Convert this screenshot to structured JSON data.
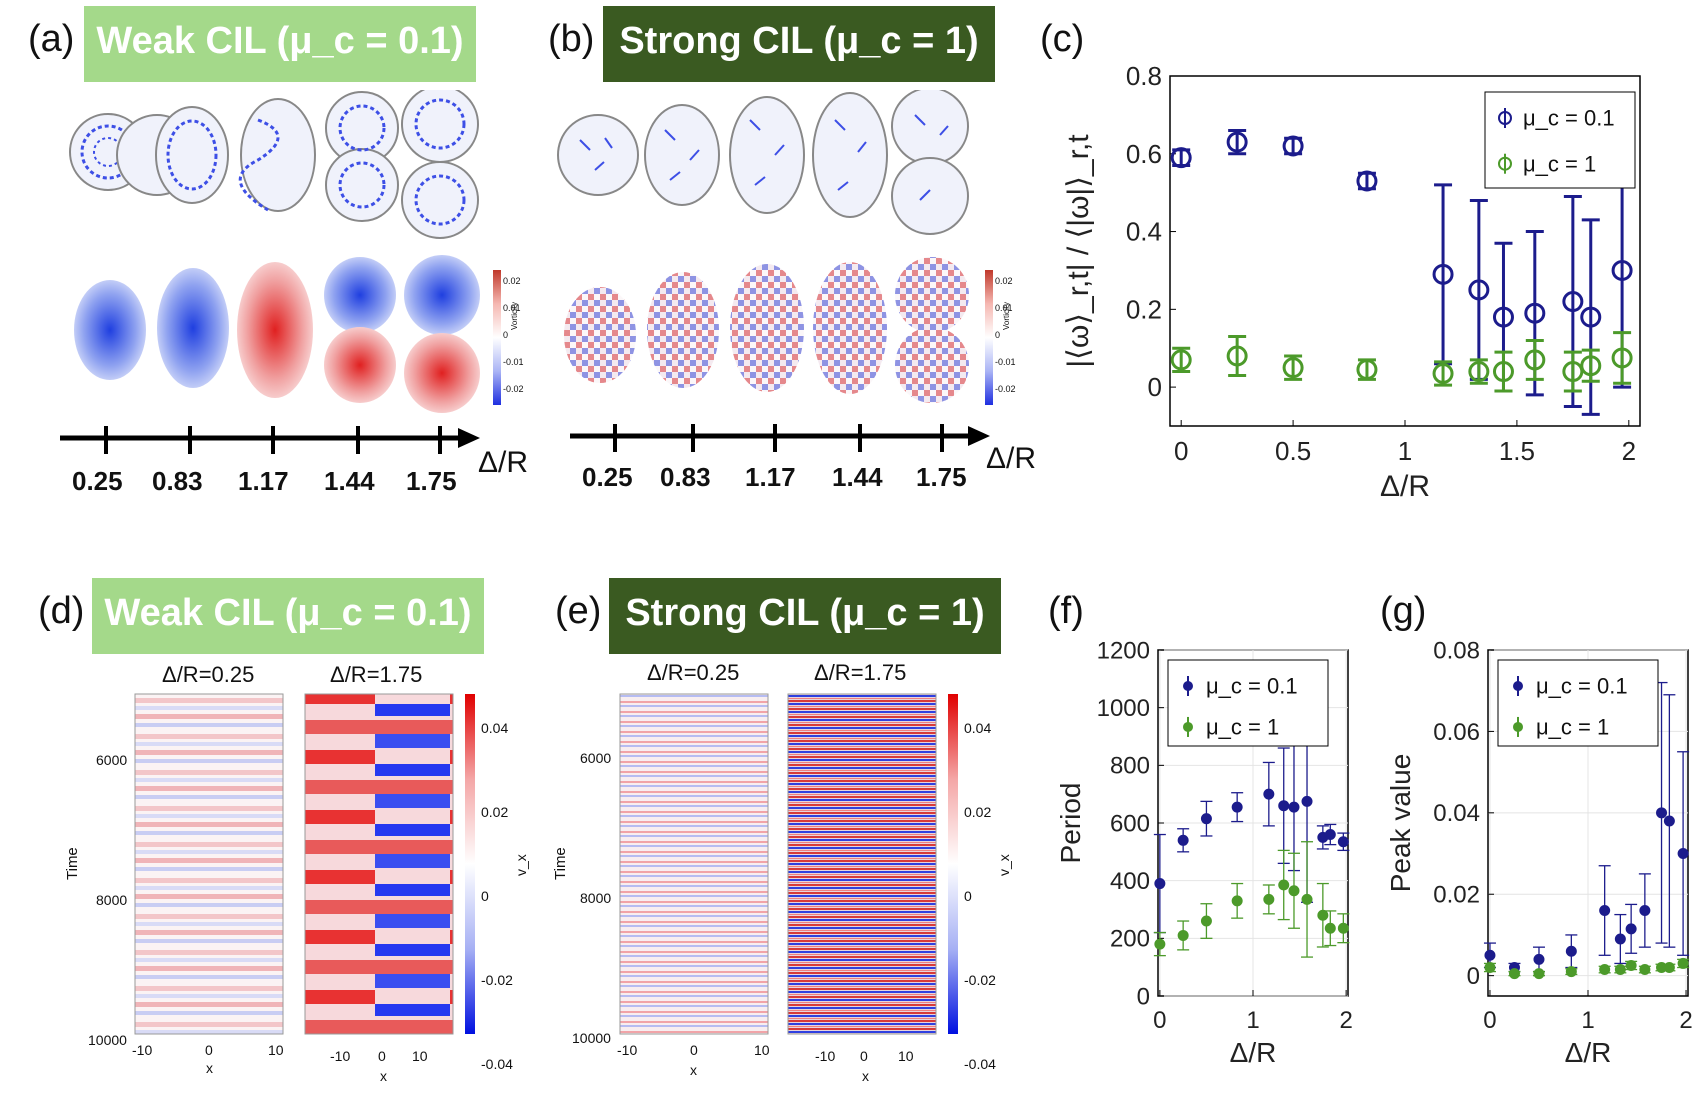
{
  "panel_labels": {
    "a": "(a)",
    "b": "(b)",
    "c": "(c)",
    "d": "(d)",
    "e": "(e)",
    "f": "(f)",
    "g": "(g)"
  },
  "banners": {
    "weak": "Weak CIL (μ_c = 0.1)",
    "strong": "Strong CIL (μ_c = 1)"
  },
  "delta_axis": {
    "ticks": [
      "0.25",
      "0.83",
      "1.17",
      "1.44",
      "1.75"
    ],
    "label": "Δ/R"
  },
  "vorticity_colorbar": {
    "title": "Vorticity",
    "ticks": [
      "0.02",
      "0.01",
      "0",
      "-0.01",
      "-0.02"
    ]
  },
  "kymograph": {
    "titles": [
      "Δ/R=0.25",
      "Δ/R=1.75"
    ],
    "ylabel": "Time",
    "xlabel": "x",
    "yticks": [
      "6000",
      "8000",
      "10000"
    ],
    "xticks_narrow": [
      "-10",
      "0",
      "10"
    ],
    "xticks_wide": [
      "-10",
      "0",
      "10"
    ],
    "colorbar_label": "v_x",
    "colorbar_ticks": [
      "0.04",
      "0.02",
      "0",
      "-0.02",
      "-0.04"
    ]
  },
  "chart_data": [
    {
      "id": "c",
      "type": "scatter",
      "xlabel": "Δ/R",
      "ylabel": "|⟨ω⟩_r,t| / ⟨|ω|⟩_r,t",
      "xlim": [
        -0.05,
        2.05
      ],
      "ylim": [
        -0.1,
        0.8
      ],
      "xticks": [
        0,
        0.5,
        1,
        1.5,
        2
      ],
      "xtick_labels": [
        "0",
        "0.5",
        "1",
        "1.5",
        "2"
      ],
      "yticks": [
        0,
        0.2,
        0.4,
        0.6,
        0.8
      ],
      "ytick_labels": [
        "0",
        "0.2",
        "0.4",
        "0.6",
        "0.8"
      ],
      "legend": "top-right",
      "series": [
        {
          "name": "μ_c = 0.1",
          "color": "#1c1c8c",
          "x": [
            0,
            0.25,
            0.5,
            0.83,
            1.17,
            1.33,
            1.44,
            1.58,
            1.75,
            1.83,
            1.97
          ],
          "y": [
            0.59,
            0.63,
            0.62,
            0.53,
            0.29,
            0.25,
            0.18,
            0.19,
            0.22,
            0.18,
            0.3
          ],
          "err": [
            0.02,
            0.03,
            0.02,
            0.02,
            0.23,
            0.23,
            0.19,
            0.21,
            0.27,
            0.25,
            0.3
          ]
        },
        {
          "name": "μ_c = 1",
          "color": "#4c9a2a",
          "x": [
            0,
            0.25,
            0.5,
            0.83,
            1.17,
            1.33,
            1.44,
            1.58,
            1.75,
            1.83,
            1.97
          ],
          "y": [
            0.07,
            0.08,
            0.05,
            0.045,
            0.035,
            0.04,
            0.04,
            0.07,
            0.04,
            0.055,
            0.075
          ],
          "err": [
            0.03,
            0.05,
            0.03,
            0.025,
            0.03,
            0.03,
            0.05,
            0.05,
            0.05,
            0.04,
            0.065
          ]
        }
      ]
    },
    {
      "id": "f",
      "type": "scatter",
      "xlabel": "Δ/R",
      "ylabel": "Period",
      "xlim": [
        -0.02,
        2.02
      ],
      "ylim": [
        0,
        1200
      ],
      "xticks": [
        0,
        1,
        2
      ],
      "xtick_labels": [
        "0",
        "1",
        "2"
      ],
      "yticks": [
        0,
        200,
        400,
        600,
        800,
        1000,
        1200
      ],
      "ytick_labels": [
        "0",
        "200",
        "400",
        "600",
        "800",
        "1000",
        "1200"
      ],
      "legend": "top-left",
      "series": [
        {
          "name": "μ_c = 0.1",
          "color": "#1c1c8c",
          "x": [
            0,
            0.25,
            0.5,
            0.83,
            1.17,
            1.33,
            1.44,
            1.58,
            1.75,
            1.83,
            1.97
          ],
          "y": [
            390,
            540,
            615,
            655,
            700,
            660,
            655,
            675,
            550,
            560,
            535
          ],
          "err": [
            170,
            40,
            60,
            50,
            110,
            200,
            220,
            350,
            40,
            35,
            30
          ]
        },
        {
          "name": "μ_c = 1",
          "color": "#4c9a2a",
          "x": [
            0,
            0.25,
            0.5,
            0.83,
            1.17,
            1.33,
            1.44,
            1.58,
            1.75,
            1.83,
            1.97
          ],
          "y": [
            180,
            210,
            260,
            330,
            335,
            385,
            365,
            335,
            280,
            235,
            235
          ],
          "err": [
            40,
            50,
            60,
            60,
            50,
            120,
            130,
            200,
            110,
            60,
            50
          ]
        }
      ]
    },
    {
      "id": "g",
      "type": "scatter",
      "xlabel": "Δ/R",
      "ylabel": "Peak value",
      "xlim": [
        -0.02,
        2.02
      ],
      "ylim": [
        -0.005,
        0.08
      ],
      "xticks": [
        0,
        1,
        2
      ],
      "xtick_labels": [
        "0",
        "1",
        "2"
      ],
      "yticks": [
        0,
        0.02,
        0.04,
        0.06,
        0.08
      ],
      "ytick_labels": [
        "0",
        "0.02",
        "0.04",
        "0.06",
        "0.08"
      ],
      "legend": "top-left",
      "series": [
        {
          "name": "μ_c = 0.1",
          "color": "#1c1c8c",
          "x": [
            0,
            0.25,
            0.5,
            0.83,
            1.17,
            1.33,
            1.44,
            1.58,
            1.75,
            1.83,
            1.97
          ],
          "y": [
            0.005,
            0.002,
            0.004,
            0.006,
            0.016,
            0.009,
            0.0115,
            0.016,
            0.04,
            0.038,
            0.03
          ],
          "err": [
            0.003,
            0.001,
            0.003,
            0.004,
            0.011,
            0.006,
            0.006,
            0.009,
            0.032,
            0.031,
            0.025
          ]
        },
        {
          "name": "μ_c = 1",
          "color": "#4c9a2a",
          "x": [
            0,
            0.25,
            0.5,
            0.83,
            1.17,
            1.33,
            1.44,
            1.58,
            1.75,
            1.83,
            1.97
          ],
          "y": [
            0.002,
            0.0005,
            0.0005,
            0.001,
            0.0015,
            0.0015,
            0.0025,
            0.0015,
            0.002,
            0.002,
            0.003
          ],
          "err": [
            0.001,
            0.0005,
            0.0005,
            0.0007,
            0.0008,
            0.0008,
            0.001,
            0.0008,
            0.0008,
            0.0008,
            0.001
          ]
        }
      ]
    }
  ]
}
